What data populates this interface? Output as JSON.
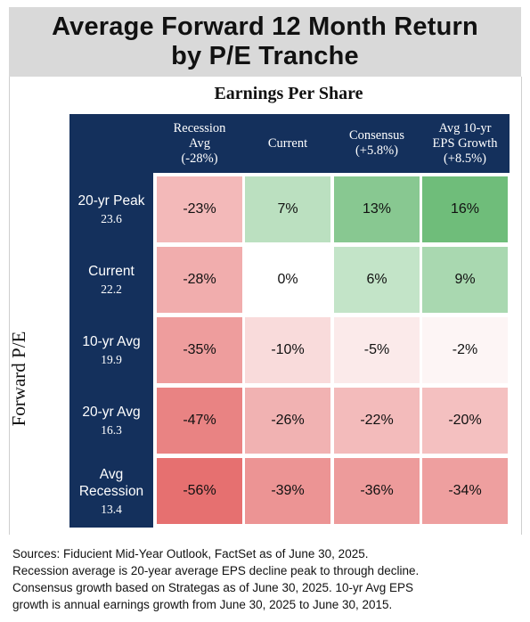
{
  "title_line1": "Average Forward 12 Month Return",
  "title_line2": "by P/E Tranche",
  "chart_data": {
    "type": "heatmap",
    "column_group_label": "Earnings Per Share",
    "row_group_label": "Forward P/E",
    "columns": [
      {
        "lines": [
          "Recession",
          "Avg",
          "(-28%)"
        ]
      },
      {
        "lines": [
          "Current"
        ]
      },
      {
        "lines": [
          "Consensus",
          "(+5.8%)"
        ]
      },
      {
        "lines": [
          "Avg 10-yr",
          "EPS Growth",
          "(+8.5%)"
        ]
      }
    ],
    "rows": [
      {
        "name_lines": [
          "20-yr Peak"
        ],
        "pe": "23.6",
        "values": [
          -23,
          7,
          13,
          16
        ],
        "labels": [
          "-23%",
          "7%",
          "13%",
          "16%"
        ]
      },
      {
        "name_lines": [
          "Current"
        ],
        "pe": "22.2",
        "values": [
          -28,
          0,
          6,
          9
        ],
        "labels": [
          "-28%",
          "0%",
          "6%",
          "9%"
        ]
      },
      {
        "name_lines": [
          "10-yr Avg"
        ],
        "pe": "19.9",
        "values": [
          -35,
          -10,
          -5,
          -2
        ],
        "labels": [
          "-35%",
          "-10%",
          "-5%",
          "-2%"
        ]
      },
      {
        "name_lines": [
          "20-yr Avg"
        ],
        "pe": "16.3",
        "values": [
          -47,
          -26,
          -22,
          -20
        ],
        "labels": [
          "-47%",
          "-26%",
          "-22%",
          "-20%"
        ]
      },
      {
        "name_lines": [
          "Avg",
          "Recession"
        ],
        "pe": "13.4",
        "values": [
          -56,
          -39,
          -36,
          -34
        ],
        "labels": [
          "-56%",
          "-39%",
          "-36%",
          "-34%"
        ]
      }
    ],
    "colors": {
      "negative": "#e67070",
      "zero": "#ffffff",
      "positive": "#6fbd7a",
      "header": "#14305c"
    }
  },
  "sources": [
    "Sources: Fiducient Mid-Year Outlook, FactSet as of June 30, 2025.",
    "Recession average is 20-year average EPS decline peak to through decline.",
    "Consensus growth based on Strategas as of June 30, 2025. 10-yr Avg EPS",
    "growth is annual earnings growth from June 30, 2025 to June 30, 2015."
  ]
}
